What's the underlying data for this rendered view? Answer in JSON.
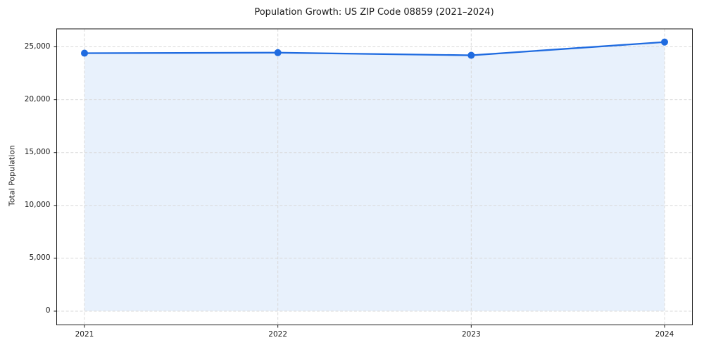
{
  "figure": {
    "title": "Population Growth: US ZIP Code 08859 (2021–2024)",
    "y_axis_label": "Total Population"
  },
  "chart_data": {
    "type": "line",
    "subtype": "line-with-area-fill-and-markers",
    "title": "Population Growth: US ZIP Code 08859 (2021–2024)",
    "xlabel": "",
    "ylabel": "Total Population",
    "categories": [
      "2021",
      "2022",
      "2023",
      "2024"
    ],
    "series": [
      {
        "name": "Total Population",
        "values": [
          24400,
          24450,
          24200,
          25450
        ]
      }
    ],
    "yticks": [
      0,
      5000,
      10000,
      15000,
      20000,
      25000
    ],
    "ytick_labels": [
      "0",
      "5,000",
      "10,000",
      "15,000",
      "20,000",
      "25,000"
    ],
    "ylim": [
      -1300,
      26700
    ],
    "grid": true,
    "grid_style": "dashed",
    "legend": "none",
    "colors": {
      "line": "#1f6be0",
      "marker": "#1f6be0",
      "area_fill": "#e8f1fc",
      "grid": "#d9d9d9",
      "spine": "#1a1a1a",
      "text": "#1a1a1a",
      "background": "#ffffff"
    }
  }
}
